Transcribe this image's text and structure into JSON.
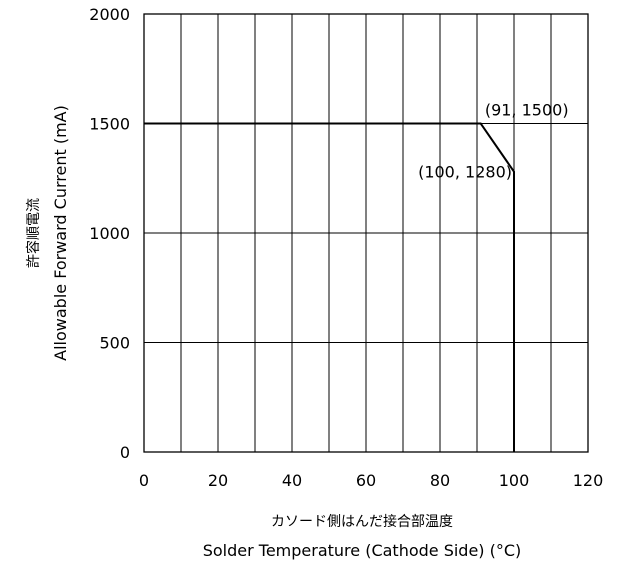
{
  "chart_data": {
    "type": "line",
    "xlabel_jp": "カソード側はんだ接合部温度",
    "xlabel": "Solder Temperature (Cathode Side) (°C)",
    "ylabel_jp": "許容順電流",
    "ylabel": "Allowable Forward Current (mA)",
    "xlim": [
      0,
      120
    ],
    "ylim": [
      0,
      2000
    ],
    "x_ticks": [
      0,
      20,
      40,
      60,
      80,
      100,
      120
    ],
    "y_ticks": [
      0,
      500,
      1000,
      1500,
      2000
    ],
    "x_grid_step": 10,
    "y_grid_step": 500,
    "grid": true,
    "series": [
      {
        "x": [
          0,
          91,
          100,
          100
        ],
        "y": [
          1500,
          1500,
          1280,
          0
        ]
      }
    ],
    "annotations": [
      {
        "text": "(91, 1500)",
        "x": 91,
        "y": 1500
      },
      {
        "text": "(100, 1280)",
        "x": 100,
        "y": 1280
      }
    ]
  }
}
